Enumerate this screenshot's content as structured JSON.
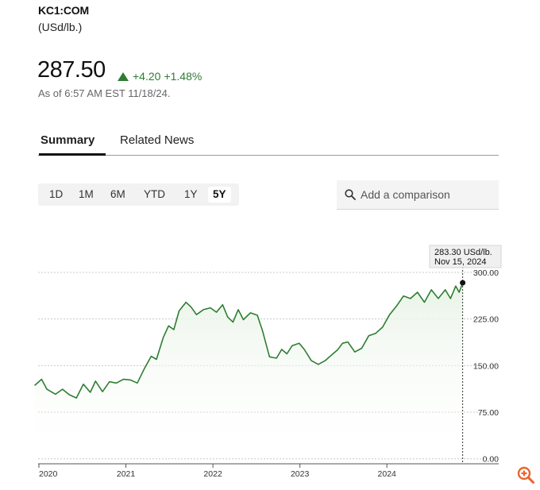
{
  "header": {
    "ticker": "KC1:COM",
    "unit": "(USd/lb.)",
    "price": "287.50",
    "change_abs": "+4.20",
    "change_pct": "+1.48%",
    "as_of": "As of 6:57 AM EST 11/18/24."
  },
  "tabs": [
    {
      "label": "Summary",
      "active": true
    },
    {
      "label": "Related News",
      "active": false
    }
  ],
  "ranges": [
    {
      "label": "1D",
      "active": false
    },
    {
      "label": "1M",
      "active": false
    },
    {
      "label": "6M",
      "active": false
    },
    {
      "label": "YTD",
      "active": false
    },
    {
      "label": "1Y",
      "active": false
    },
    {
      "label": "5Y",
      "active": true
    }
  ],
  "compare": {
    "placeholder": "Add a comparison"
  },
  "tooltip": {
    "value": "283.30 USd/lb.",
    "date": "Nov 15, 2024"
  },
  "colors": {
    "line": "#2e7d32",
    "fill_top": "#e8f3e6",
    "up": "#2e7d32"
  },
  "icons": {
    "search": "search-icon",
    "zoom": "zoom-in-icon",
    "up": "triangle-up-icon"
  },
  "chart_data": {
    "type": "area",
    "title": "",
    "xlabel": "",
    "ylabel": "",
    "ylim": [
      -8,
      300
    ],
    "xlim": [
      2020.0,
      2024.92
    ],
    "y_ticks": [
      300,
      225,
      150,
      75,
      0
    ],
    "y_tick_labels": [
      "300.00",
      "225.00",
      "150.00",
      "75.00",
      "0.00"
    ],
    "x_ticks": [
      2020,
      2021,
      2022,
      2023,
      2024
    ],
    "x_tick_labels": [
      "2020",
      "2021",
      "2022",
      "2023",
      "2024"
    ],
    "grid": "horizontal dotted",
    "series": [
      {
        "x": [
          2019.96,
          2020.04,
          2020.1,
          2020.2,
          2020.28,
          2020.36,
          2020.44,
          2020.52,
          2020.6,
          2020.66,
          2020.74,
          2020.82,
          2020.9,
          2020.98,
          2021.06,
          2021.14,
          2021.22,
          2021.3,
          2021.36,
          2021.44,
          2021.5,
          2021.56,
          2021.62,
          2021.7,
          2021.76,
          2021.82,
          2021.9,
          2021.98,
          2022.05,
          2022.12,
          2022.18,
          2022.24,
          2022.3,
          2022.36,
          2022.44,
          2022.52,
          2022.58,
          2022.66,
          2022.74,
          2022.8,
          2022.86,
          2022.92,
          2023.0,
          2023.06,
          2023.14,
          2023.22,
          2023.3,
          2023.38,
          2023.44,
          2023.5,
          2023.56,
          2023.64,
          2023.72,
          2023.8,
          2023.88,
          2023.96,
          2024.04,
          2024.12,
          2024.2,
          2024.28,
          2024.36,
          2024.44,
          2024.52,
          2024.6,
          2024.68,
          2024.74,
          2024.8,
          2024.84,
          2024.88
        ],
        "y": [
          118,
          128,
          112,
          104,
          112,
          103,
          98,
          120,
          107,
          125,
          108,
          124,
          122,
          128,
          127,
          122,
          145,
          165,
          160,
          196,
          214,
          208,
          238,
          252,
          244,
          232,
          240,
          243,
          236,
          248,
          228,
          220,
          240,
          224,
          235,
          231,
          206,
          164,
          162,
          176,
          169,
          182,
          186,
          176,
          158,
          152,
          158,
          168,
          175,
          186,
          188,
          172,
          178,
          198,
          202,
          212,
          232,
          246,
          262,
          258,
          268,
          252,
          272,
          258,
          272,
          258,
          278,
          268,
          283.3
        ]
      }
    ]
  }
}
